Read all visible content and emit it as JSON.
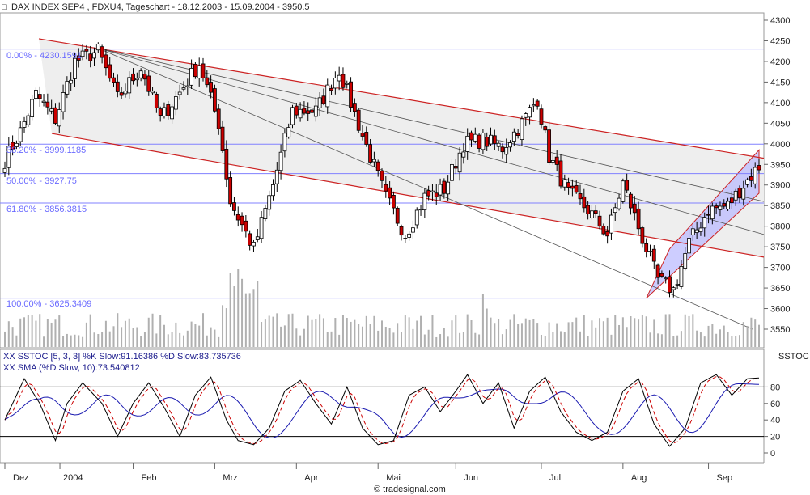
{
  "title_box_glyph": "□",
  "title": "DAX INDEX SEP4   , FDXU4, Tageschart - 18.12.2003 - 15.09.2004 - 3950.5",
  "watermark": "© tradesignal.com",
  "indicator_panel_label": "SSTOC",
  "indicator_legend": {
    "line1": "XX SSTOC [5, 3, 3] %K Slow:91.16386 %D Slow:83.735736",
    "line2": "XX SMA (%D Slow, 10):73.540812"
  },
  "colors": {
    "bull_candle": "#ffffff",
    "bear_candle": "#cc0000",
    "volume": "#b0b0b0",
    "fib_line": "#8080ff",
    "channel_line": "#cc2222",
    "channel_fill": "#eeeeee",
    "rising_channel_fill": "#b8b8ff",
    "k_line": "#000000",
    "d_line": "#cc0000",
    "sma_line": "#1a1ab0",
    "fib_text": "#6a6aff"
  },
  "chart_data": [
    {
      "type": "candlestick",
      "title": "DAX INDEX SEP4   , FDXU4, Tageschart - 18.12.2003 - 15.09.2004 - 3950.5",
      "ylim": [
        3500,
        4300
      ],
      "y_ticks": [
        4300,
        4250,
        4200,
        4150,
        4100,
        4050,
        4000,
        3950,
        3900,
        3850,
        3800,
        3750,
        3700,
        3650,
        3600,
        3550
      ],
      "x_tick_labels": [
        "Dez",
        "2004",
        "Feb",
        "Mrz",
        "Apr",
        "Mai",
        "Jun",
        "Jul",
        "Aug",
        "Sep"
      ],
      "last_value": 3950.5,
      "fibonacci_levels": [
        {
          "label": "0.00% - 4230.1591",
          "value": 4230.1591
        },
        {
          "label": "38.20% - 3999.1185",
          "value": 3999.1185
        },
        {
          "label": "50.00% - 3927.75",
          "value": 3927.75
        },
        {
          "label": "61.80% - 3856.3815",
          "value": 3856.3815
        },
        {
          "label": "100.00% - 3625.3409",
          "value": 3625.3409
        }
      ],
      "anchors": [
        {
          "bar": 0,
          "price": 3960
        },
        {
          "bar": 4,
          "price": 4030
        },
        {
          "bar": 8,
          "price": 4120
        },
        {
          "bar": 13,
          "price": 4060
        },
        {
          "bar": 18,
          "price": 4200
        },
        {
          "bar": 24,
          "price": 4225
        },
        {
          "bar": 29,
          "price": 4110
        },
        {
          "bar": 35,
          "price": 4185
        },
        {
          "bar": 40,
          "price": 4060
        },
        {
          "bar": 45,
          "price": 4125
        },
        {
          "bar": 50,
          "price": 4195
        },
        {
          "bar": 55,
          "price": 4050
        },
        {
          "bar": 58,
          "price": 3860
        },
        {
          "bar": 64,
          "price": 3745
        },
        {
          "bar": 69,
          "price": 3900
        },
        {
          "bar": 74,
          "price": 4080
        },
        {
          "bar": 80,
          "price": 4080
        },
        {
          "bar": 86,
          "price": 4180
        },
        {
          "bar": 92,
          "price": 4020
        },
        {
          "bar": 98,
          "price": 3870
        },
        {
          "bar": 103,
          "price": 3780
        },
        {
          "bar": 108,
          "price": 3870
        },
        {
          "bar": 113,
          "price": 3890
        },
        {
          "bar": 118,
          "price": 4000
        },
        {
          "bar": 123,
          "price": 4010
        },
        {
          "bar": 128,
          "price": 3990
        },
        {
          "bar": 133,
          "price": 4050
        },
        {
          "bar": 137,
          "price": 4110
        },
        {
          "bar": 140,
          "price": 3970
        },
        {
          "bar": 145,
          "price": 3880
        },
        {
          "bar": 150,
          "price": 3840
        },
        {
          "bar": 155,
          "price": 3780
        },
        {
          "bar": 159,
          "price": 3905
        },
        {
          "bar": 164,
          "price": 3770
        },
        {
          "bar": 168,
          "price": 3670
        },
        {
          "bar": 172,
          "price": 3645
        },
        {
          "bar": 176,
          "price": 3760
        },
        {
          "bar": 181,
          "price": 3840
        },
        {
          "bar": 186,
          "price": 3850
        },
        {
          "bar": 190,
          "price": 3900
        },
        {
          "bar": 194,
          "price": 3945
        }
      ],
      "bars_total": 195
    },
    {
      "type": "line",
      "title": "SSTOC",
      "ylim": [
        -10,
        100
      ],
      "y_ticks": [
        80,
        60,
        40,
        20,
        0
      ],
      "reference_lines": [
        80,
        20
      ],
      "series": [
        {
          "name": "%K Slow",
          "last": 91.16386
        },
        {
          "name": "%D Slow",
          "last": 83.735736
        },
        {
          "name": "SMA (%D Slow, 10)",
          "last": 73.540812
        }
      ],
      "k_anchors": [
        [
          0,
          40
        ],
        [
          5,
          90
        ],
        [
          9,
          60
        ],
        [
          13,
          15
        ],
        [
          16,
          60
        ],
        [
          20,
          85
        ],
        [
          25,
          60
        ],
        [
          29,
          20
        ],
        [
          33,
          60
        ],
        [
          37,
          85
        ],
        [
          41,
          55
        ],
        [
          45,
          20
        ],
        [
          49,
          70
        ],
        [
          53,
          92
        ],
        [
          57,
          40
        ],
        [
          60,
          15
        ],
        [
          64,
          10
        ],
        [
          68,
          30
        ],
        [
          72,
          75
        ],
        [
          76,
          88
        ],
        [
          80,
          60
        ],
        [
          84,
          35
        ],
        [
          88,
          80
        ],
        [
          92,
          30
        ],
        [
          96,
          10
        ],
        [
          100,
          15
        ],
        [
          104,
          70
        ],
        [
          108,
          80
        ],
        [
          112,
          50
        ],
        [
          116,
          75
        ],
        [
          119,
          95
        ],
        [
          123,
          60
        ],
        [
          127,
          85
        ],
        [
          131,
          30
        ],
        [
          135,
          75
        ],
        [
          139,
          92
        ],
        [
          143,
          50
        ],
        [
          147,
          25
        ],
        [
          151,
          15
        ],
        [
          155,
          25
        ],
        [
          159,
          75
        ],
        [
          163,
          90
        ],
        [
          167,
          35
        ],
        [
          171,
          8
        ],
        [
          175,
          30
        ],
        [
          179,
          85
        ],
        [
          183,
          95
        ],
        [
          187,
          70
        ],
        [
          191,
          90
        ],
        [
          194,
          91
        ]
      ]
    }
  ]
}
